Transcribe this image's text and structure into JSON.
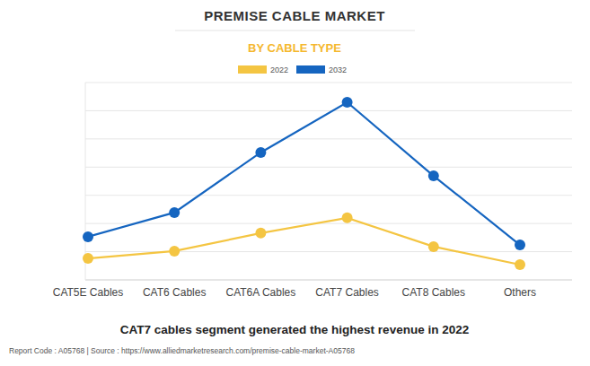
{
  "chart_data": {
    "type": "line",
    "title": "PREMISE CABLE MARKET",
    "subtitle": "BY CABLE TYPE",
    "caption": "CAT7 cables segment generated the highest revenue in 2022",
    "footer": "Report Code : A05768  |  Source : https://www.alliedmarketresearch.com/premise-cable-market-A05768",
    "categories": [
      "CAT5E Cables",
      "CAT6 Cables",
      "CAT6A Cables",
      "CAT7 Cables",
      "CAT8 Cables",
      "Others"
    ],
    "series": [
      {
        "name": "2022",
        "color": "#f4c542",
        "marker": "circle",
        "values": [
          0.76,
          1.02,
          1.66,
          2.2,
          1.18,
          0.54
        ]
      },
      {
        "name": "2032",
        "color": "#1565c0",
        "marker": "circle",
        "values": [
          1.53,
          2.39,
          4.52,
          6.3,
          3.69,
          1.24
        ]
      }
    ],
    "ylim": [
      0,
      7
    ],
    "yticks": [
      0,
      1,
      2,
      3,
      4,
      5,
      6,
      7
    ],
    "grid": true,
    "tick_labels": "x",
    "legend": "top"
  }
}
